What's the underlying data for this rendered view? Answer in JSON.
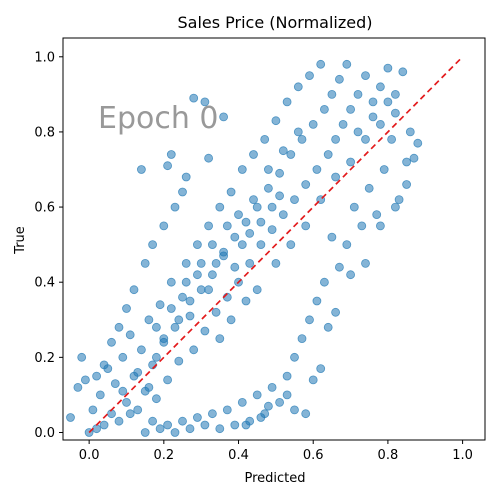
{
  "colors": {
    "points": "#1f77b4",
    "reference_line": "#e31a1c",
    "annotation": "#999999"
  },
  "chart_data": {
    "type": "scatter",
    "title": "Sales Price (Normalized)",
    "xlabel": "Predicted",
    "ylabel": "True",
    "xlim": [
      -0.07,
      1.06
    ],
    "ylim": [
      -0.02,
      1.05
    ],
    "x_ticks": [
      0.0,
      0.2,
      0.4,
      0.6,
      0.8,
      1.0
    ],
    "y_ticks": [
      0.0,
      0.2,
      0.4,
      0.6,
      0.8,
      1.0
    ],
    "x_tick_labels": [
      "0.0",
      "0.2",
      "0.4",
      "0.6",
      "0.8",
      "1.0"
    ],
    "y_tick_labels": [
      "0.0",
      "0.2",
      "0.4",
      "0.6",
      "0.8",
      "1.0"
    ],
    "annotation": "Epoch 0",
    "grid": false,
    "reference_line": {
      "style": "dashed",
      "from": [
        0,
        0
      ],
      "to": [
        1,
        1
      ]
    },
    "series": [
      {
        "points": [
          [
            -0.05,
            0.04
          ],
          [
            -0.03,
            0.12
          ],
          [
            -0.02,
            0.2
          ],
          [
            -0.01,
            0.14
          ],
          [
            0.0,
            0.0
          ],
          [
            0.01,
            0.06
          ],
          [
            0.02,
            0.01
          ],
          [
            0.03,
            0.1
          ],
          [
            0.04,
            0.02
          ],
          [
            0.05,
            0.17
          ],
          [
            0.06,
            0.05
          ],
          [
            0.07,
            0.13
          ],
          [
            0.08,
            0.03
          ],
          [
            0.09,
            0.2
          ],
          [
            0.1,
            0.08
          ],
          [
            0.11,
            0.26
          ],
          [
            0.12,
            0.15
          ],
          [
            0.13,
            0.06
          ],
          [
            0.14,
            0.22
          ],
          [
            0.15,
            0.11
          ],
          [
            0.16,
            0.3
          ],
          [
            0.17,
            0.18
          ],
          [
            0.18,
            0.09
          ],
          [
            0.19,
            0.34
          ],
          [
            0.2,
            0.24
          ],
          [
            0.21,
            0.14
          ],
          [
            0.22,
            0.4
          ],
          [
            0.23,
            0.28
          ],
          [
            0.24,
            0.19
          ],
          [
            0.25,
            0.36
          ],
          [
            0.26,
            0.45
          ],
          [
            0.27,
            0.31
          ],
          [
            0.28,
            0.22
          ],
          [
            0.29,
            0.5
          ],
          [
            0.3,
            0.38
          ],
          [
            0.31,
            0.27
          ],
          [
            0.32,
            0.55
          ],
          [
            0.33,
            0.42
          ],
          [
            0.34,
            0.32
          ],
          [
            0.35,
            0.6
          ],
          [
            0.36,
            0.47
          ],
          [
            0.37,
            0.36
          ],
          [
            0.38,
            0.64
          ],
          [
            0.39,
            0.52
          ],
          [
            0.4,
            0.4
          ],
          [
            0.41,
            0.7
          ],
          [
            0.42,
            0.56
          ],
          [
            0.43,
            0.45
          ],
          [
            0.44,
            0.74
          ],
          [
            0.45,
            0.6
          ],
          [
            0.46,
            0.5
          ],
          [
            0.47,
            0.78
          ],
          [
            0.48,
            0.65
          ],
          [
            0.49,
            0.54
          ],
          [
            0.5,
            0.83
          ],
          [
            0.51,
            0.69
          ],
          [
            0.52,
            0.58
          ],
          [
            0.53,
            0.88
          ],
          [
            0.54,
            0.74
          ],
          [
            0.55,
            0.62
          ],
          [
            0.56,
            0.92
          ],
          [
            0.57,
            0.78
          ],
          [
            0.58,
            0.66
          ],
          [
            0.59,
            0.95
          ],
          [
            0.6,
            0.82
          ],
          [
            0.61,
            0.7
          ],
          [
            0.62,
            0.98
          ],
          [
            0.63,
            0.86
          ],
          [
            0.64,
            0.74
          ],
          [
            0.65,
            0.9
          ],
          [
            0.66,
            0.78
          ],
          [
            0.67,
            0.94
          ],
          [
            0.68,
            0.82
          ],
          [
            0.69,
            0.98
          ],
          [
            0.7,
            0.86
          ],
          [
            0.72,
            0.9
          ],
          [
            0.74,
            0.95
          ],
          [
            0.76,
            0.88
          ],
          [
            0.78,
            0.92
          ],
          [
            0.8,
            0.97
          ],
          [
            0.82,
            0.9
          ],
          [
            0.84,
            0.96
          ],
          [
            0.86,
            0.8
          ],
          [
            0.87,
            0.73
          ],
          [
            0.85,
            0.66
          ],
          [
            0.83,
            0.62
          ],
          [
            0.81,
            0.78
          ],
          [
            0.79,
            0.7
          ],
          [
            0.77,
            0.58
          ],
          [
            0.75,
            0.65
          ],
          [
            0.73,
            0.55
          ],
          [
            0.71,
            0.6
          ],
          [
            0.69,
            0.5
          ],
          [
            0.67,
            0.44
          ],
          [
            0.65,
            0.52
          ],
          [
            0.63,
            0.4
          ],
          [
            0.61,
            0.35
          ],
          [
            0.59,
            0.3
          ],
          [
            0.57,
            0.25
          ],
          [
            0.55,
            0.2
          ],
          [
            0.53,
            0.15
          ],
          [
            0.51,
            0.08
          ],
          [
            0.49,
            0.12
          ],
          [
            0.47,
            0.05
          ],
          [
            0.45,
            0.1
          ],
          [
            0.43,
            0.03
          ],
          [
            0.41,
            0.08
          ],
          [
            0.39,
            0.02
          ],
          [
            0.37,
            0.06
          ],
          [
            0.35,
            0.01
          ],
          [
            0.33,
            0.05
          ],
          [
            0.31,
            0.02
          ],
          [
            0.29,
            0.04
          ],
          [
            0.27,
            0.01
          ],
          [
            0.25,
            0.03
          ],
          [
            0.23,
            0.0
          ],
          [
            0.21,
            0.02
          ],
          [
            0.19,
            0.01
          ],
          [
            0.17,
            0.03
          ],
          [
            0.15,
            0.0
          ],
          [
            0.14,
            0.7
          ],
          [
            0.21,
            0.71
          ],
          [
            0.28,
            0.89
          ],
          [
            0.31,
            0.88
          ],
          [
            0.36,
            0.84
          ],
          [
            0.22,
            0.74
          ],
          [
            0.26,
            0.68
          ],
          [
            0.32,
            0.73
          ],
          [
            0.55,
            0.06
          ],
          [
            0.58,
            0.05
          ],
          [
            0.53,
            0.1
          ],
          [
            0.48,
            0.07
          ],
          [
            0.42,
            0.02
          ],
          [
            0.46,
            0.04
          ],
          [
            0.62,
            0.17
          ],
          [
            0.6,
            0.14
          ],
          [
            0.64,
            0.28
          ],
          [
            0.66,
            0.32
          ],
          [
            0.7,
            0.42
          ],
          [
            0.74,
            0.45
          ],
          [
            0.78,
            0.55
          ],
          [
            0.82,
            0.6
          ],
          [
            0.85,
            0.72
          ],
          [
            0.88,
            0.77
          ],
          [
            0.1,
            0.33
          ],
          [
            0.08,
            0.28
          ],
          [
            0.12,
            0.38
          ],
          [
            0.15,
            0.45
          ],
          [
            0.17,
            0.5
          ],
          [
            0.2,
            0.55
          ],
          [
            0.23,
            0.6
          ],
          [
            0.25,
            0.64
          ],
          [
            0.04,
            0.18
          ],
          [
            0.06,
            0.24
          ],
          [
            0.02,
            0.15
          ],
          [
            0.09,
            0.11
          ],
          [
            0.11,
            0.05
          ],
          [
            0.13,
            0.16
          ],
          [
            0.16,
            0.12
          ],
          [
            0.18,
            0.2
          ],
          [
            0.3,
            0.45
          ],
          [
            0.33,
            0.5
          ],
          [
            0.37,
            0.55
          ],
          [
            0.4,
            0.58
          ],
          [
            0.44,
            0.62
          ],
          [
            0.48,
            0.7
          ],
          [
            0.52,
            0.75
          ],
          [
            0.56,
            0.8
          ],
          [
            0.35,
            0.25
          ],
          [
            0.38,
            0.3
          ],
          [
            0.42,
            0.35
          ],
          [
            0.45,
            0.38
          ],
          [
            0.5,
            0.45
          ],
          [
            0.54,
            0.5
          ],
          [
            0.58,
            0.55
          ],
          [
            0.62,
            0.62
          ],
          [
            0.66,
            0.68
          ],
          [
            0.7,
            0.72
          ],
          [
            0.74,
            0.78
          ],
          [
            0.78,
            0.82
          ],
          [
            0.82,
            0.85
          ],
          [
            0.8,
            0.88
          ],
          [
            0.76,
            0.84
          ],
          [
            0.72,
            0.8
          ],
          [
            0.24,
            0.3
          ],
          [
            0.27,
            0.35
          ],
          [
            0.2,
            0.25
          ],
          [
            0.18,
            0.28
          ],
          [
            0.22,
            0.33
          ],
          [
            0.26,
            0.4
          ],
          [
            0.29,
            0.42
          ],
          [
            0.32,
            0.38
          ],
          [
            0.34,
            0.45
          ],
          [
            0.36,
            0.48
          ],
          [
            0.39,
            0.44
          ],
          [
            0.41,
            0.5
          ],
          [
            0.43,
            0.53
          ],
          [
            0.46,
            0.56
          ],
          [
            0.49,
            0.6
          ],
          [
            0.51,
            0.63
          ]
        ]
      }
    ]
  }
}
